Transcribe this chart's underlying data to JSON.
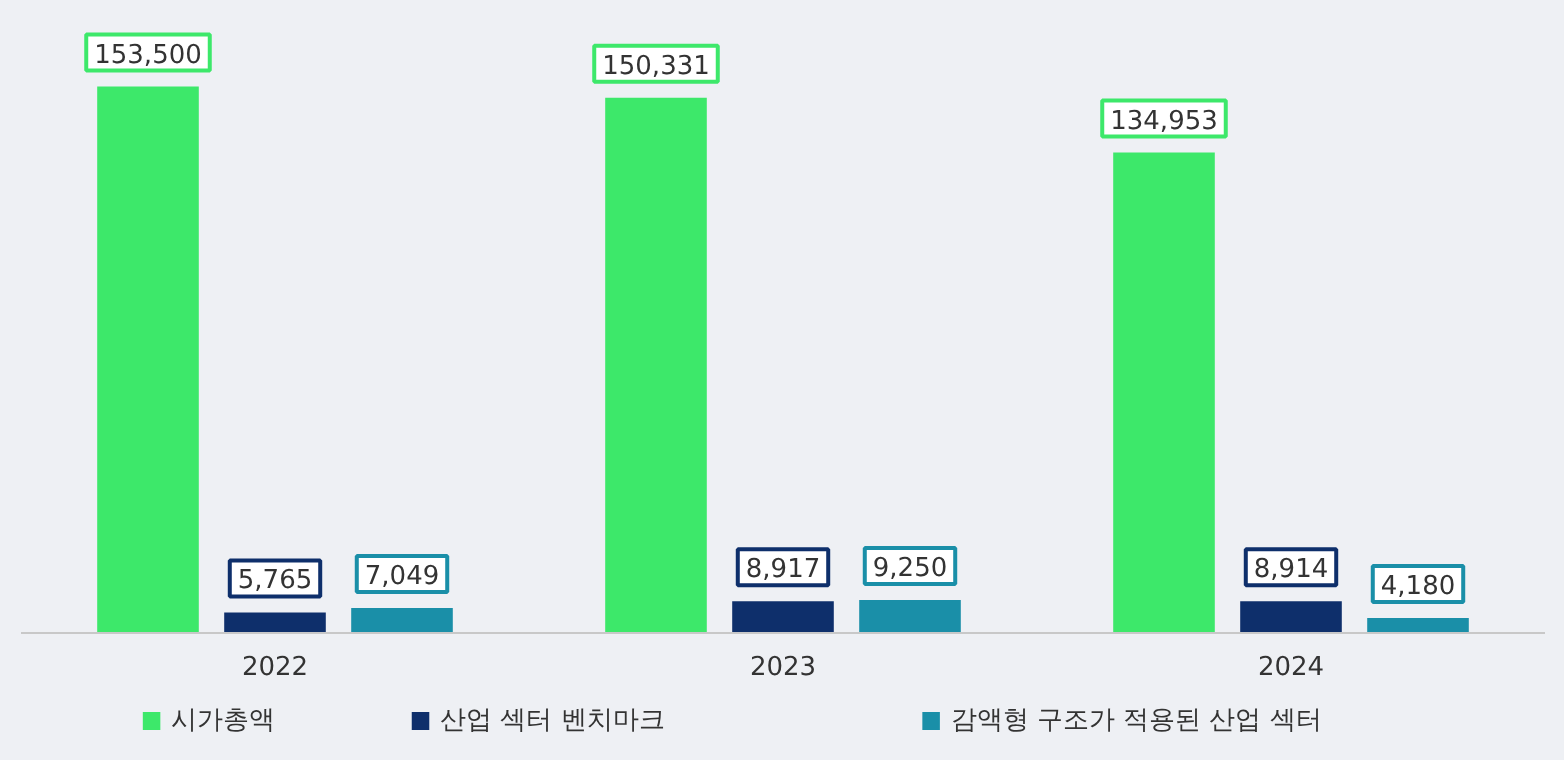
{
  "chart_data": {
    "type": "bar",
    "categories": [
      "2022",
      "2023",
      "2024"
    ],
    "series": [
      {
        "name": "시가총액",
        "color": "#3de86a",
        "values": [
          153500,
          150331,
          134953
        ],
        "value_labels": [
          "153,500",
          "150,331",
          "134,953"
        ]
      },
      {
        "name": "산업 섹터 벤치마크",
        "color": "#0e2f6b",
        "values": [
          5765,
          8917,
          8914
        ],
        "value_labels": [
          "5,765",
          "8,917",
          "8,914"
        ]
      },
      {
        "name": "감액형 구조가 적용된 산업 섹터",
        "color": "#1a8fa8",
        "values": [
          7049,
          9250,
          4180
        ],
        "value_labels": [
          "7,049",
          "9,250",
          "4,180"
        ]
      }
    ],
    "legend": "bottom"
  }
}
